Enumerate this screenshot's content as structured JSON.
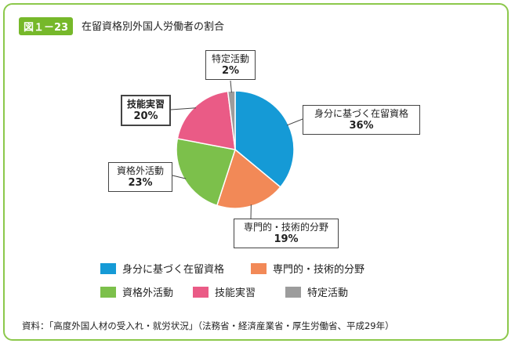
{
  "figure": {
    "badge": "図１－23",
    "title": "在留資格別外国人労働者の割合",
    "source": "資料：「高度外国人材の受入れ・就労状況」（法務省・経済産業省・厚生労働省、平成29年）"
  },
  "chart_data": {
    "type": "pie",
    "title": "在留資格別外国人労働者の割合",
    "legend_position": "bottom",
    "slices": [
      {
        "label": "身分に基づく在留資格",
        "value": 36,
        "value_label": "36%",
        "color": "#159ad6"
      },
      {
        "label": "専門的・技術的分野",
        "value": 19,
        "value_label": "19%",
        "color": "#f28957"
      },
      {
        "label": "資格外活動",
        "value": 23,
        "value_label": "23%",
        "color": "#7cc04b"
      },
      {
        "label": "技能実習",
        "value": 20,
        "value_label": "20%",
        "color": "#ea5b86"
      },
      {
        "label": "特定活動",
        "value": 2,
        "value_label": "2%",
        "color": "#9c9c9c"
      }
    ]
  },
  "legend": [
    {
      "label": "身分に基づく在留資格",
      "color": "#159ad6"
    },
    {
      "label": "専門的・技術的分野",
      "color": "#f28957"
    },
    {
      "label": "特定活動",
      "color": "#9c9c9c"
    },
    {
      "label": "資格外活動",
      "color": "#7cc04b"
    },
    {
      "label": "技能実習",
      "color": "#ea5b86"
    }
  ]
}
